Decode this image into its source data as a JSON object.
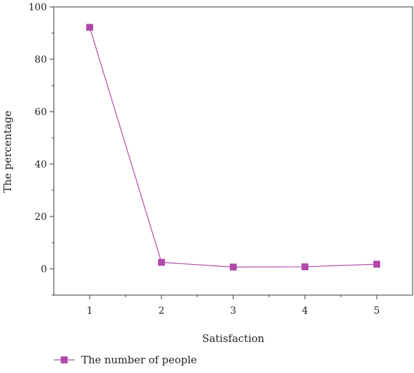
{
  "chart_data": {
    "type": "line",
    "xlabel": "Satisfaction",
    "ylabel": "The percentage",
    "x": [
      1,
      2,
      3,
      4,
      5
    ],
    "xlim": [
      0.5,
      5.5
    ],
    "ylim": [
      -10,
      100
    ],
    "xticks": [
      "1",
      "2",
      "3",
      "4",
      "5"
    ],
    "yticks": [
      "0",
      "20",
      "40",
      "60",
      "80",
      "100"
    ],
    "series": [
      {
        "name": "The number of people",
        "values": [
          92.2,
          2.5,
          0.7,
          0.8,
          1.8
        ],
        "color": "#b04aa8",
        "marker": "square"
      }
    ],
    "grid": false,
    "legend": "bottom-left"
  }
}
